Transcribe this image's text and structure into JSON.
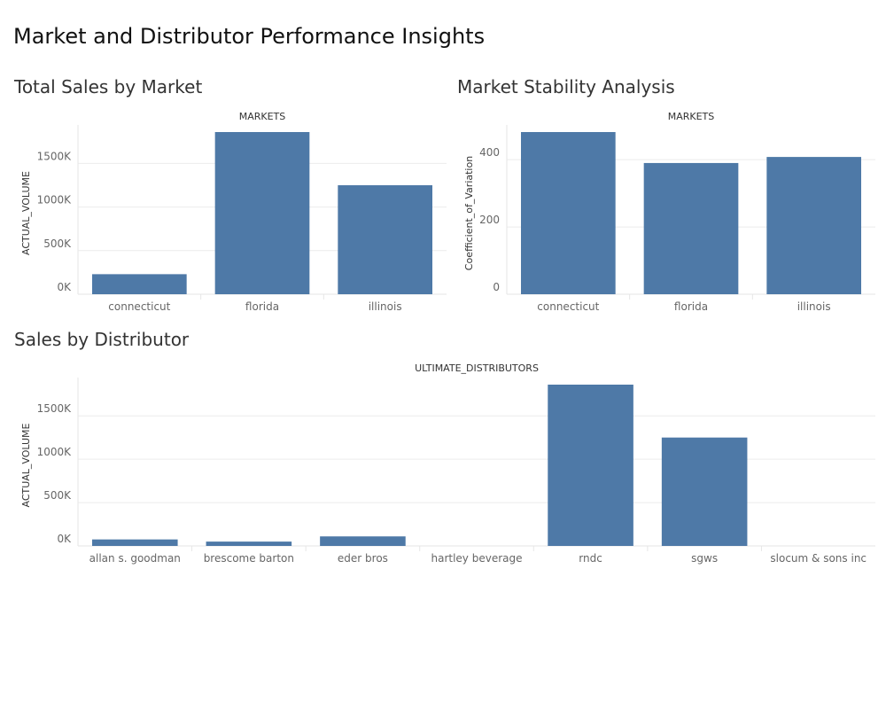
{
  "dashboard": {
    "title": "Market and Distributor Performance Insights",
    "bar_color": "#4e79a7"
  },
  "chart_data": [
    {
      "id": "total_sales",
      "type": "bar",
      "title": "Total Sales by Market",
      "header": "MARKETS",
      "xlabel": "",
      "ylabel": "ACTUAL_VOLUME",
      "categories": [
        "connecticut",
        "florida",
        "illinois"
      ],
      "values": [
        230000,
        1860000,
        1250000
      ],
      "ylim": [
        0,
        1860000
      ],
      "yticks": [
        0,
        500000,
        1000000,
        1500000
      ],
      "ytick_labels": [
        "0K",
        "500K",
        "1000K",
        "1500K"
      ],
      "grid": true
    },
    {
      "id": "stability",
      "type": "bar",
      "title": "Market Stability Analysis",
      "header": "MARKETS",
      "xlabel": "",
      "ylabel": "Coefficient_of_Variation",
      "categories": [
        "connecticut",
        "florida",
        "illinois"
      ],
      "values": [
        482,
        390,
        408
      ],
      "ylim": [
        0,
        482
      ],
      "yticks": [
        0,
        200,
        400
      ],
      "ytick_labels": [
        "0",
        "200",
        "400"
      ],
      "grid": true
    },
    {
      "id": "distributors",
      "type": "bar",
      "title": "Sales by Distributor",
      "header": "ULTIMATE_DISTRIBUTORS",
      "xlabel": "",
      "ylabel": "ACTUAL_VOLUME",
      "categories": [
        "allan s. goodman",
        "brescome barton",
        "eder bros",
        "hartley beverage",
        "rndc",
        "sgws",
        "slocum & sons inc"
      ],
      "values": [
        75000,
        50000,
        110000,
        0,
        1860000,
        1250000,
        0
      ],
      "ylim": [
        0,
        1860000
      ],
      "yticks": [
        0,
        500000,
        1000000,
        1500000
      ],
      "ytick_labels": [
        "0K",
        "500K",
        "1000K",
        "1500K"
      ],
      "grid": true
    }
  ]
}
